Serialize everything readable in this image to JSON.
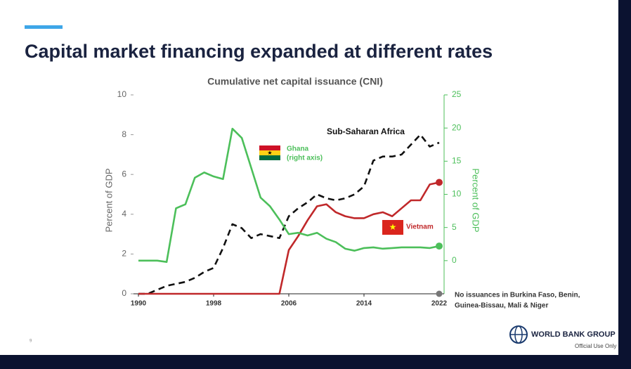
{
  "slide": {
    "title": "Capital market financing expanded at different rates",
    "page_number": "9",
    "logo": "WORLD BANK GROUP",
    "footer": "Official Use Only"
  },
  "chart_data": {
    "type": "line",
    "title": "Cumulative net capital issuance (CNI)",
    "y_label": "Percent of GDP",
    "y2_label": "Percent of GDP",
    "x": [
      1990,
      1991,
      1992,
      1993,
      1994,
      1995,
      1996,
      1997,
      1998,
      1999,
      2000,
      2001,
      2002,
      2003,
      2004,
      2005,
      2006,
      2007,
      2008,
      2009,
      2010,
      2011,
      2012,
      2013,
      2014,
      2015,
      2016,
      2017,
      2018,
      2019,
      2020,
      2021,
      2022
    ],
    "xlim": [
      1990,
      2022
    ],
    "xticks": [
      1990,
      1998,
      2006,
      2014,
      2022
    ],
    "ylim": [
      0,
      10
    ],
    "yticks": [
      0,
      2,
      4,
      6,
      8,
      10
    ],
    "y2lim": [
      -5,
      25
    ],
    "y2ticks": [
      0,
      5,
      10,
      15,
      20,
      25
    ],
    "series": [
      {
        "name": "Sub-Saharan Africa",
        "color": "#111111",
        "dashed": true,
        "values": [
          0,
          0,
          0.2,
          0.4,
          0.5,
          0.6,
          0.8,
          1.1,
          1.3,
          2.3,
          3.5,
          3.3,
          2.8,
          3.0,
          2.9,
          2.8,
          3.9,
          4.3,
          4.6,
          5.0,
          4.8,
          4.7,
          4.8,
          5.0,
          5.4,
          6.7,
          6.9,
          6.9,
          7.0,
          7.5,
          8.0,
          7.4,
          7.6
        ]
      },
      {
        "name": "Vietnam",
        "color": "#c0282a",
        "values": [
          0,
          0,
          0,
          0,
          0,
          0,
          0,
          0,
          0,
          0,
          0,
          0,
          0,
          0,
          0,
          0,
          2.2,
          2.9,
          3.7,
          4.4,
          4.5,
          4.1,
          3.9,
          3.8,
          3.8,
          4.0,
          4.1,
          3.9,
          4.3,
          4.7,
          4.7,
          5.5,
          5.6
        ]
      },
      {
        "name": "Ghana",
        "color": "#4cbf5a",
        "axis": "y2",
        "values": [
          0,
          0,
          0,
          -0.2,
          7.9,
          8.5,
          12.5,
          13.3,
          12.7,
          12.3,
          19.9,
          18.5,
          14.0,
          9.5,
          8.2,
          6.2,
          4.0,
          4.2,
          3.8,
          4.2,
          3.3,
          2.8,
          1.8,
          1.5,
          1.9,
          2.0,
          1.8,
          1.9,
          2.0,
          2.0,
          2.0,
          1.9,
          2.2
        ]
      }
    ],
    "annotations": [
      "(right axis)",
      "No issuances in Burkina Faso, Benin,",
      "Guinea-Bissau, Mali & Niger"
    ]
  }
}
